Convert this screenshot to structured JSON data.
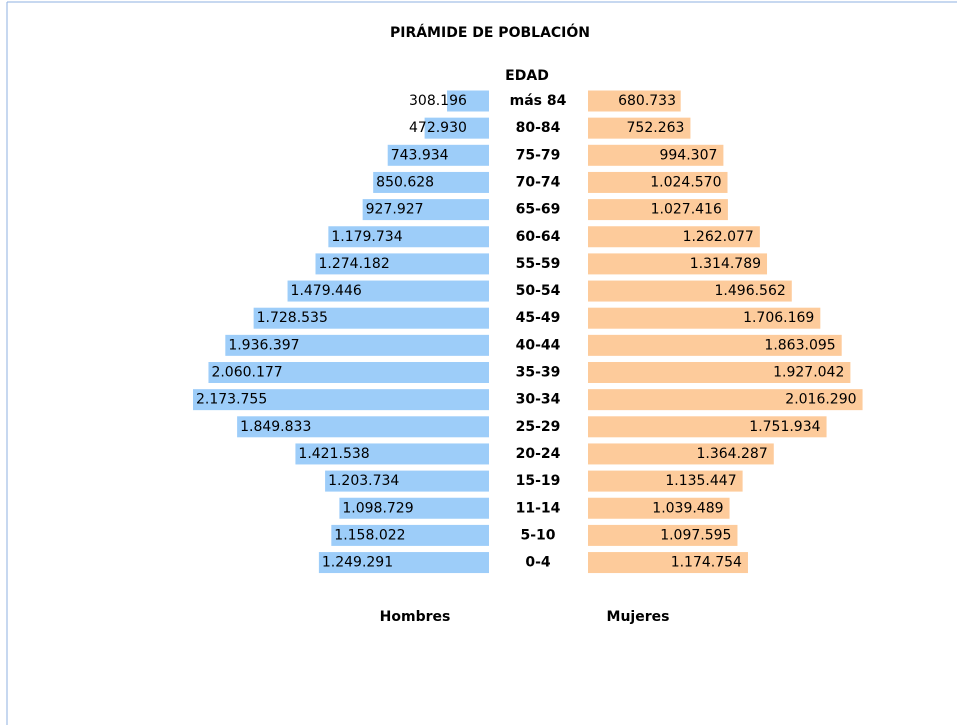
{
  "chart_data": {
    "type": "pyramid",
    "title": "PIRÁMIDE DE POBLACIÓN",
    "y_label": "EDAD",
    "categories": [
      "más 84",
      "80-84",
      "75-79",
      "70-74",
      "65-69",
      "60-64",
      "55-59",
      "50-54",
      "45-49",
      "40-44",
      "35-39",
      "30-34",
      "25-29",
      "20-24",
      "15-19",
      "11-14",
      "5-10",
      "0-4"
    ],
    "series": [
      {
        "name": "Hombres",
        "color": "#9dcdf9",
        "values": [
          308196,
          472930,
          743934,
          850628,
          927927,
          1179734,
          1274182,
          1479446,
          1728535,
          1936397,
          2060177,
          2173755,
          1849833,
          1421538,
          1203734,
          1098729,
          1158022,
          1249291
        ],
        "value_labels": [
          "308.196",
          "472.930",
          "743.934",
          "850.628",
          "927.927",
          "1.179.734",
          "1.274.182",
          "1.479.446",
          "1.728.535",
          "1.936.397",
          "2.060.177",
          "2.173.755",
          "1.849.833",
          "1.421.538",
          "1.203.734",
          "1.098.729",
          "1.158.022",
          "1.249.291"
        ]
      },
      {
        "name": "Mujeres",
        "color": "#fdcb9b",
        "values": [
          680733,
          752263,
          994307,
          1024570,
          1027416,
          1262077,
          1314789,
          1496562,
          1706169,
          1863095,
          1927042,
          2016290,
          1751934,
          1364287,
          1135447,
          1039489,
          1097595,
          1174754
        ],
        "value_labels": [
          "680.733",
          "752.263",
          "994.307",
          "1.024.570",
          "1.027.416",
          "1.262.077",
          "1.314.789",
          "1.496.562",
          "1.706.169",
          "1.863.095",
          "1.927.042",
          "2.016.290",
          "1.751.934",
          "1.364.287",
          "1.135.447",
          "1.039.489",
          "1.097.595",
          "1.174.754"
        ]
      }
    ]
  }
}
